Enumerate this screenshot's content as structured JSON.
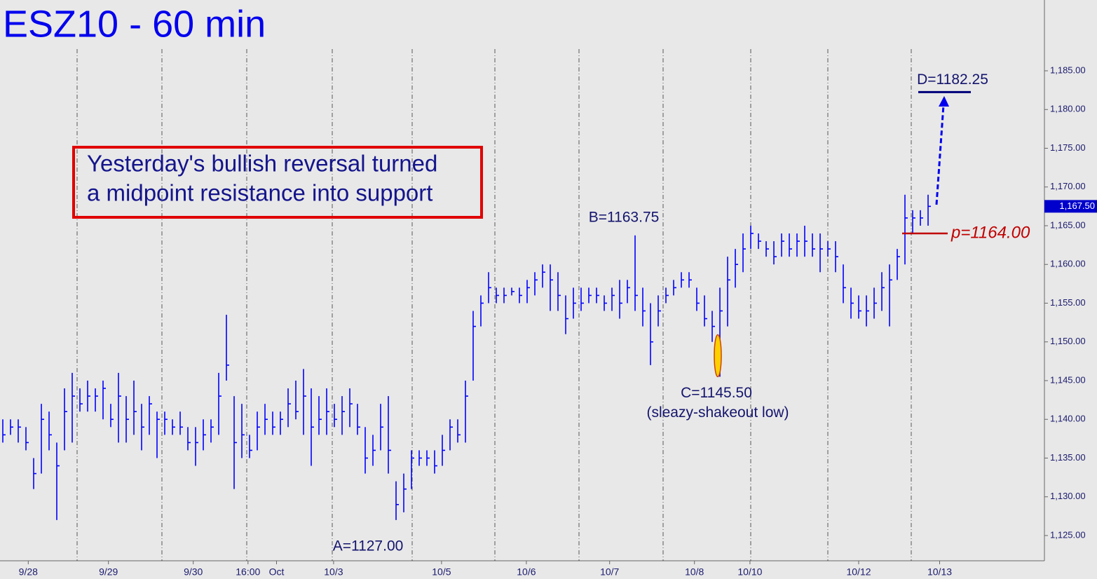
{
  "chart_data": {
    "type": "ohlc",
    "title": "ESZ10 - 60 min",
    "note": [
      "Yesterday's bullish reversal turned",
      "a midpoint resistance into support"
    ],
    "color": "#0000ff",
    "high": [
      1140,
      1140,
      1140,
      1139,
      1135,
      1142,
      1141,
      1137,
      1144,
      1146,
      1144,
      1145,
      1144,
      1145,
      1142,
      1146,
      1143,
      1145,
      1142,
      1143,
      1141,
      1141,
      1140,
      1141,
      1139,
      1139,
      1140,
      1140,
      1146,
      1153.5,
      1143,
      1142,
      1138,
      1141,
      1142,
      1141,
      1141,
      1144,
      1145,
      1146.5,
      1144,
      1143,
      1144,
      1142,
      1143,
      1144,
      1142,
      1139,
      1138,
      1142,
      1143,
      1132,
      1133,
      1136,
      1136,
      1136,
      1136,
      1138,
      1140,
      1140,
      1145,
      1154,
      1156,
      1159,
      1157,
      1157,
      1157,
      1157,
      1158,
      1159,
      1160,
      1160,
      1159,
      1156,
      1157,
      1157,
      1157,
      1157,
      1156,
      1157,
      1158,
      1158,
      1163.75,
      1157,
      1155,
      1156,
      1157,
      1158,
      1159,
      1159,
      1157,
      1156,
      1154,
      1157,
      1161,
      1162,
      1164,
      1165,
      1164,
      1163,
      1163,
      1164,
      1164,
      1164,
      1165,
      1164,
      1164,
      1163,
      1163,
      1160,
      1157,
      1156,
      1156,
      1157,
      1159,
      1160,
      1162,
      1169,
      1167,
      1167,
      1169
    ],
    "low": [
      1137,
      1138,
      1137,
      1136,
      1131,
      1133,
      1136,
      1127,
      1136,
      1137,
      1141,
      1141,
      1141,
      1140,
      1139,
      1137,
      1137,
      1138,
      1136,
      1138,
      1135,
      1138,
      1138,
      1138,
      1136,
      1134,
      1136,
      1137,
      1138,
      1145,
      1131,
      1135,
      1135,
      1136,
      1138,
      1138,
      1138,
      1139,
      1140,
      1138,
      1134,
      1138,
      1138,
      1139,
      1138,
      1139,
      1138,
      1133,
      1134,
      1136,
      1133,
      1127,
      1128,
      1131,
      1134,
      1134,
      1133,
      1134,
      1136,
      1137,
      1137,
      1145,
      1152,
      1155,
      1155,
      1155,
      1156,
      1155,
      1155,
      1156,
      1157,
      1154,
      1154,
      1151,
      1153,
      1154,
      1155,
      1155,
      1154,
      1154,
      1153,
      1155,
      1154,
      1152,
      1147,
      1152,
      1155,
      1156,
      1157,
      1157,
      1154,
      1152,
      1150,
      1145.5,
      1152,
      1157,
      1159,
      1162,
      1162,
      1161,
      1160,
      1161,
      1161,
      1161,
      1161,
      1161,
      1159,
      1161,
      1159,
      1155,
      1153,
      1153,
      1152,
      1153,
      1154,
      1152,
      1158,
      1160,
      1164,
      1165,
      1165
    ],
    "close": [
      1138,
      1139,
      1139,
      1137,
      1133,
      1140,
      1138,
      1134,
      1141,
      1143,
      1142,
      1143,
      1143,
      1144,
      1140,
      1143,
      1140,
      1141,
      1139,
      1142,
      1140,
      1140,
      1139,
      1139,
      1137,
      1137,
      1138,
      1139,
      1143,
      1147,
      1137,
      1138,
      1136,
      1139,
      1140,
      1139,
      1140,
      1142,
      1141,
      1143,
      1139,
      1140,
      1141,
      1140,
      1141,
      1142,
      1139,
      1135,
      1136,
      1139,
      1136,
      1129,
      1131,
      1135,
      1135,
      1135,
      1134,
      1136,
      1139,
      1138,
      1143,
      1152,
      1155,
      1157,
      1156,
      1156,
      1156.5,
      1156,
      1157,
      1158,
      1159,
      1158,
      1156,
      1153,
      1155,
      1155,
      1156,
      1156,
      1155,
      1156,
      1155,
      1157,
      1156,
      1154,
      1150,
      1154,
      1156,
      1157,
      1158,
      1158,
      1155,
      1153,
      1152,
      1154,
      1158,
      1160,
      1162,
      1164,
      1163,
      1162,
      1161,
      1163,
      1162,
      1163,
      1163,
      1162,
      1162,
      1162,
      1161,
      1157,
      1155,
      1154,
      1154,
      1155,
      1157,
      1158,
      1161,
      1166,
      1166,
      1166,
      1167.5
    ],
    "last_price": {
      "value": 1167.5,
      "label": "1,167.50"
    },
    "xlim": [
      -0.3636,
      135.09
    ],
    "xticks": [
      {
        "value": 3.3,
        "label": "9/28"
      },
      {
        "value": 13.7,
        "label": "9/29"
      },
      {
        "value": 24.7,
        "label": "9/30"
      },
      {
        "value": 31.8,
        "label": "16:00"
      },
      {
        "value": 35.5,
        "label": "Oct"
      },
      {
        "value": 42.9,
        "label": "10/3"
      },
      {
        "value": 56.9,
        "label": "10/5"
      },
      {
        "value": 67.9,
        "label": "10/6"
      },
      {
        "value": 78.7,
        "label": "10/7"
      },
      {
        "value": 89.7,
        "label": "10/8"
      },
      {
        "value": 96.9,
        "label": "10/10"
      },
      {
        "value": 111,
        "label": "10/12"
      },
      {
        "value": 121.5,
        "label": "10/13"
      }
    ],
    "ylim": [
      1121.74,
      1194.14
    ],
    "yticks": [
      {
        "value": 1125,
        "label": "1,125.00"
      },
      {
        "value": 1130,
        "label": "1,130.00"
      },
      {
        "value": 1135,
        "label": "1,135.00"
      },
      {
        "value": 1140,
        "label": "1,140.00"
      },
      {
        "value": 1145,
        "label": "1,145.00"
      },
      {
        "value": 1150,
        "label": "1,150.00"
      },
      {
        "value": 1155,
        "label": "1,155.00"
      },
      {
        "value": 1160,
        "label": "1,160.00"
      },
      {
        "value": 1165,
        "label": "1,165.00"
      },
      {
        "value": 1170,
        "label": "1,170.00"
      },
      {
        "value": 1175,
        "label": "1,175.00"
      },
      {
        "value": 1180,
        "label": "1,180.00"
      },
      {
        "value": 1185,
        "label": "1,185.00"
      }
    ],
    "annotations": [
      {
        "label": "A=1127.00",
        "value": 1127
      },
      {
        "label": "B=1163.75",
        "value": 1163.75
      },
      {
        "label": "C=1145.50",
        "value": 1145.5,
        "sublabel": "(sleazy-shakeout low)"
      },
      {
        "label": "D=1182.25",
        "value": 1182.25
      },
      {
        "label": "p=1164.00",
        "value": 1164
      }
    ]
  }
}
